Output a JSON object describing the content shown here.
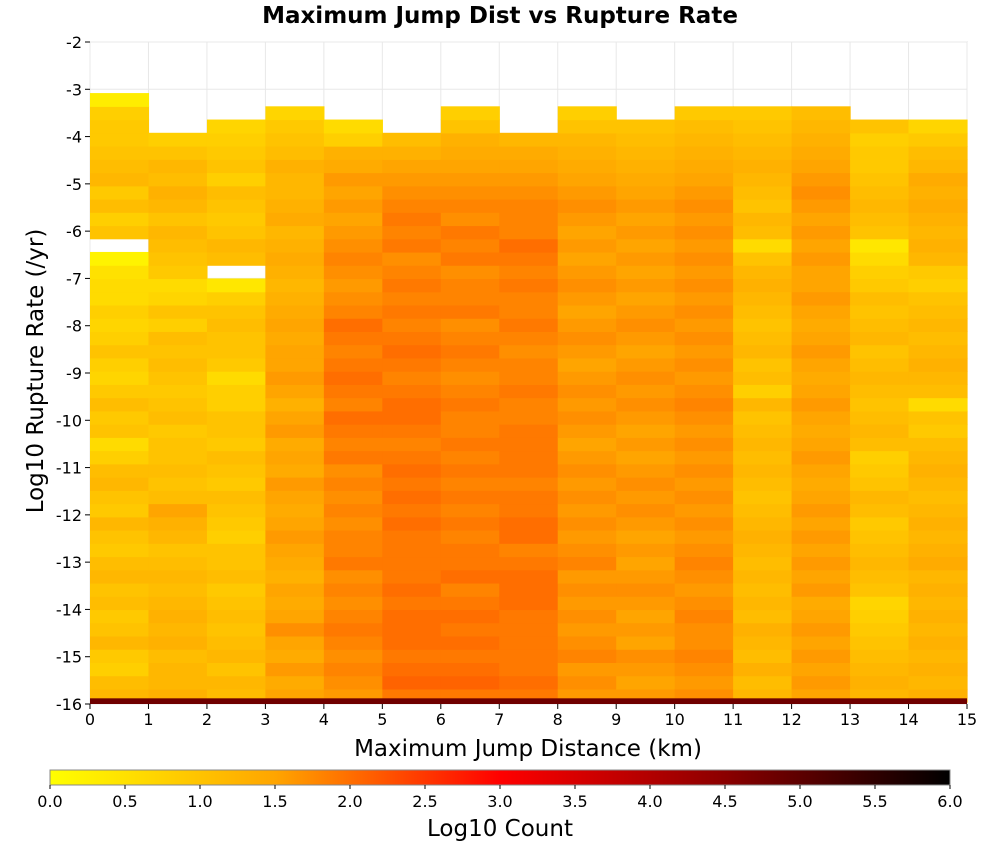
{
  "chart_data": {
    "type": "heatmap",
    "title": "Maximum Jump Dist vs Rupture Rate",
    "xlabel": "Maximum Jump Distance (km)",
    "ylabel": "Log10 Rupture Rate (/yr)",
    "colorbar_label": "Log10 Count",
    "xlim": [
      0,
      15
    ],
    "ylim": [
      -16,
      -2
    ],
    "x_ticks": [
      "0",
      "1",
      "2",
      "3",
      "4",
      "5",
      "6",
      "7",
      "8",
      "9",
      "10",
      "11",
      "12",
      "13",
      "14",
      "15"
    ],
    "y_ticks": [
      "-2",
      "-3",
      "-4",
      "-5",
      "-6",
      "-7",
      "-8",
      "-9",
      "-10",
      "-11",
      "-12",
      "-13",
      "-14",
      "-15",
      "-16"
    ],
    "colorbar_ticks": [
      "0.0",
      "0.5",
      "1.0",
      "1.5",
      "2.0",
      "2.5",
      "3.0",
      "3.5",
      "4.0",
      "4.5",
      "5.0",
      "5.5",
      "6.0"
    ],
    "colorbar_range": [
      0,
      6
    ],
    "colormap": [
      "#ffff00",
      "#ffa500",
      "#ff0000",
      "#8b0000",
      "#000000"
    ],
    "x_bin_width": 1,
    "y_bin_height": 0.28,
    "x_bin_starts": [
      0,
      1,
      2,
      3,
      4,
      5,
      6,
      7,
      8,
      9,
      10,
      11,
      12,
      13,
      14
    ],
    "y_bin_starts": [
      -15.96,
      -15.68,
      -15.4,
      -15.12,
      -14.84,
      -14.56,
      -14.28,
      -14.0,
      -13.72,
      -13.44,
      -13.16,
      -12.88,
      -12.6,
      -12.32,
      -12.04,
      -11.76,
      -11.48,
      -11.2,
      -10.92,
      -10.64,
      -10.36,
      -10.08,
      -9.8,
      -9.52,
      -9.24,
      -8.96,
      -8.68,
      -8.4,
      -8.12,
      -7.84,
      -7.56,
      -7.28,
      -7.0,
      -6.72,
      -6.44,
      -6.16,
      -5.88,
      -5.6,
      -5.32,
      -5.04,
      -4.76,
      -4.48,
      -4.2,
      -3.92,
      -3.64,
      -3.36
    ],
    "counts_log10": [
      [
        1.2,
        1.1,
        0.8,
        0.9,
        1.2,
        1.0,
        0.9,
        1.1,
        1.0,
        1.2,
        1.1,
        0.9,
        1.0,
        1.2,
        0.9,
        1.0,
        1.2,
        1.1,
        0.8,
        0.6,
        1.0,
        0.9,
        1.1,
        0.9,
        0.7,
        0.8,
        1.0,
        0.8,
        0.7,
        0.8,
        0.6,
        0.6,
        0.5,
        0.2,
        null,
        1.0,
        0.8,
        1.1,
        0.9,
        1.2,
        1.1,
        1.0,
        0.9,
        0.9,
        0.8,
        0.3
      ],
      [
        1.3,
        1.2,
        1.2,
        1.1,
        1.3,
        1.2,
        1.3,
        1.2,
        1.1,
        1.2,
        1.1,
        1.0,
        1.2,
        1.3,
        1.5,
        1.1,
        1.0,
        1.1,
        1.0,
        1.0,
        0.9,
        1.1,
        1.0,
        0.9,
        1.0,
        1.1,
        1.0,
        1.1,
        0.8,
        1.0,
        0.7,
        0.6,
        0.9,
        1.0,
        1.1,
        1.2,
        1.0,
        1.2,
        1.3,
        1.1,
        1.2,
        1.0,
        0.8,
        null,
        null,
        null
      ],
      [
        1.1,
        1.2,
        1.0,
        1.2,
        1.1,
        1.0,
        1.1,
        1.0,
        0.9,
        1.1,
        1.0,
        1.0,
        0.8,
        0.9,
        1.0,
        1.1,
        0.9,
        1.0,
        1.1,
        0.9,
        1.0,
        1.0,
        0.8,
        0.8,
        0.6,
        0.9,
        1.0,
        1.0,
        1.1,
        1.0,
        0.8,
        0.4,
        null,
        1.1,
        1.2,
        1.0,
        0.9,
        1.0,
        1.1,
        0.8,
        1.0,
        0.9,
        0.8,
        0.7,
        null,
        null
      ],
      [
        1.5,
        1.4,
        1.6,
        1.4,
        1.5,
        1.7,
        1.5,
        1.4,
        1.5,
        1.3,
        1.4,
        1.5,
        1.6,
        1.5,
        1.4,
        1.5,
        1.6,
        1.4,
        1.5,
        1.4,
        1.6,
        1.5,
        1.3,
        1.5,
        1.6,
        1.5,
        1.5,
        1.4,
        1.5,
        1.4,
        1.3,
        1.2,
        1.3,
        1.4,
        1.3,
        1.2,
        1.4,
        1.3,
        1.2,
        1.2,
        1.3,
        1.1,
        1.0,
        0.9,
        0.7,
        null
      ],
      [
        1.6,
        1.7,
        1.8,
        1.7,
        1.8,
        1.9,
        1.8,
        1.7,
        1.8,
        1.7,
        1.9,
        1.8,
        1.8,
        1.7,
        1.8,
        1.7,
        1.8,
        1.7,
        1.9,
        1.8,
        1.9,
        2.0,
        1.8,
        1.9,
        2.0,
        1.9,
        1.8,
        1.9,
        2.0,
        1.8,
        1.7,
        1.6,
        1.7,
        1.8,
        1.7,
        1.6,
        1.5,
        1.6,
        1.5,
        1.6,
        1.4,
        1.3,
        0.8,
        0.6,
        null,
        null
      ],
      [
        1.9,
        2.1,
        2.0,
        1.9,
        2.0,
        2.0,
        2.0,
        1.9,
        2.0,
        1.9,
        1.9,
        1.9,
        1.9,
        2.0,
        1.9,
        2.0,
        1.9,
        2.0,
        1.9,
        1.8,
        1.9,
        2.0,
        2.0,
        1.9,
        1.8,
        1.9,
        2.0,
        1.9,
        1.8,
        1.9,
        1.8,
        1.9,
        1.8,
        1.7,
        1.9,
        1.8,
        1.9,
        1.8,
        1.7,
        1.6,
        1.5,
        1.3,
        1.1,
        null,
        null,
        null
      ],
      [
        1.9,
        2.1,
        2.0,
        1.9,
        2.0,
        1.9,
        2.0,
        1.9,
        1.8,
        2.0,
        1.9,
        1.9,
        1.8,
        1.9,
        1.8,
        1.9,
        1.8,
        1.9,
        1.8,
        1.9,
        1.8,
        1.8,
        1.9,
        1.8,
        1.7,
        1.8,
        1.9,
        1.8,
        1.7,
        1.9,
        1.8,
        1.8,
        1.7,
        1.9,
        1.8,
        1.9,
        1.7,
        1.8,
        1.7,
        1.6,
        1.5,
        1.4,
        1.3,
        1.0,
        0.8,
        null
      ],
      [
        1.9,
        2.0,
        1.9,
        1.9,
        1.9,
        1.9,
        1.9,
        2.0,
        2.0,
        2.0,
        1.9,
        1.8,
        2.0,
        2.0,
        1.9,
        1.9,
        1.8,
        1.9,
        1.9,
        1.9,
        1.9,
        1.8,
        1.8,
        1.9,
        1.8,
        1.8,
        1.7,
        1.8,
        1.9,
        1.8,
        1.8,
        1.9,
        1.8,
        1.9,
        2.0,
        1.8,
        1.8,
        1.8,
        1.7,
        1.6,
        1.5,
        1.4,
        1.2,
        null,
        null,
        null
      ],
      [
        1.6,
        1.7,
        1.6,
        1.8,
        1.7,
        1.6,
        1.7,
        1.6,
        1.7,
        1.6,
        1.8,
        1.7,
        1.6,
        1.7,
        1.6,
        1.7,
        1.6,
        1.7,
        1.6,
        1.5,
        1.6,
        1.7,
        1.6,
        1.7,
        1.6,
        1.5,
        1.6,
        1.7,
        1.6,
        1.5,
        1.6,
        1.7,
        1.6,
        1.5,
        1.6,
        1.5,
        1.6,
        1.7,
        1.6,
        1.5,
        1.4,
        1.3,
        1.2,
        1.0,
        0.8,
        null
      ],
      [
        1.6,
        1.5,
        1.6,
        1.7,
        1.5,
        1.6,
        1.5,
        1.6,
        1.7,
        1.6,
        1.5,
        1.6,
        1.5,
        1.6,
        1.7,
        1.6,
        1.7,
        1.6,
        1.5,
        1.6,
        1.5,
        1.6,
        1.7,
        1.6,
        1.7,
        1.6,
        1.5,
        1.6,
        1.7,
        1.6,
        1.5,
        1.6,
        1.5,
        1.6,
        1.5,
        1.6,
        1.5,
        1.6,
        1.5,
        1.4,
        1.3,
        1.2,
        1.1,
        1.0,
        null,
        null
      ],
      [
        1.7,
        1.6,
        1.7,
        1.8,
        1.7,
        1.7,
        1.8,
        1.7,
        1.6,
        1.7,
        1.8,
        1.7,
        1.6,
        1.7,
        1.6,
        1.7,
        1.6,
        1.7,
        1.6,
        1.7,
        1.6,
        1.7,
        1.8,
        1.7,
        1.6,
        1.7,
        1.6,
        1.7,
        1.6,
        1.7,
        1.6,
        1.7,
        1.6,
        1.7,
        1.6,
        1.7,
        1.6,
        1.7,
        1.6,
        1.5,
        1.4,
        1.3,
        1.2,
        1.1,
        0.9,
        null
      ],
      [
        1.2,
        1.1,
        1.3,
        1.1,
        1.2,
        1.3,
        1.1,
        1.2,
        1.1,
        1.2,
        1.1,
        1.2,
        1.3,
        1.2,
        1.1,
        1.0,
        1.1,
        1.2,
        1.1,
        1.2,
        1.1,
        1.0,
        1.2,
        0.8,
        1.1,
        1.0,
        1.2,
        1.1,
        1.0,
        1.1,
        1.2,
        1.3,
        1.2,
        1.0,
        0.6,
        1.1,
        1.2,
        1.0,
        1.1,
        1.2,
        1.3,
        1.2,
        1.1,
        1.0,
        0.9,
        null
      ],
      [
        1.5,
        1.6,
        1.5,
        1.6,
        1.5,
        1.6,
        1.5,
        1.4,
        1.6,
        1.5,
        1.6,
        1.5,
        1.6,
        1.5,
        1.6,
        1.5,
        1.4,
        1.5,
        1.6,
        1.5,
        1.4,
        1.5,
        1.6,
        1.5,
        1.4,
        1.5,
        1.6,
        1.5,
        1.4,
        1.5,
        1.6,
        1.5,
        1.5,
        1.6,
        1.5,
        1.6,
        1.5,
        1.6,
        1.7,
        1.6,
        1.5,
        1.4,
        1.3,
        1.2,
        1.1,
        null
      ],
      [
        1.2,
        1.3,
        1.2,
        1.1,
        1.0,
        0.9,
        0.8,
        0.7,
        1.0,
        1.1,
        1.2,
        1.1,
        1.0,
        0.9,
        1.1,
        1.2,
        1.0,
        0.9,
        0.8,
        1.1,
        1.2,
        1.1,
        1.0,
        1.1,
        1.2,
        1.1,
        1.0,
        1.2,
        1.1,
        1.0,
        1.1,
        0.9,
        0.8,
        0.6,
        0.4,
        1.0,
        1.1,
        1.2,
        1.1,
        1.0,
        0.9,
        0.9,
        0.8,
        1.0,
        null,
        null
      ],
      [
        1.3,
        1.2,
        1.3,
        1.2,
        1.3,
        1.2,
        1.3,
        1.2,
        1.3,
        1.2,
        1.4,
        1.3,
        1.2,
        1.3,
        1.2,
        1.1,
        1.2,
        1.3,
        1.2,
        1.1,
        0.9,
        1.0,
        0.6,
        1.1,
        1.2,
        1.3,
        1.2,
        1.1,
        1.2,
        1.1,
        1.0,
        0.8,
        0.9,
        1.2,
        1.3,
        1.2,
        1.3,
        1.4,
        1.3,
        1.4,
        1.2,
        1.1,
        0.9,
        0.7,
        null,
        null
      ]
    ],
    "bottom_band": {
      "y_range": [
        -16.0,
        -15.88
      ],
      "value": 4.8
    }
  }
}
